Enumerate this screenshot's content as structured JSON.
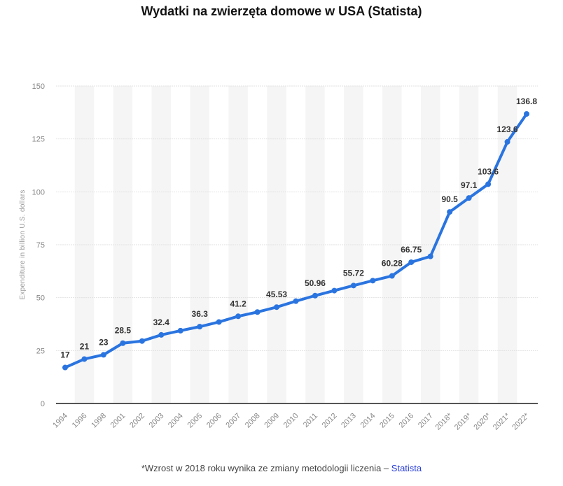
{
  "title": "Wydatki na zwierzęta domowe w USA (Statista)",
  "footnote": {
    "text": "*Wzrost w 2018 roku wynika ze zmiany metodologii liczenia – ",
    "source_link": "Statista"
  },
  "chart_data": {
    "type": "line",
    "xlabel": "",
    "ylabel": "Expenditure in billion U.S. dollars",
    "ylim": [
      0,
      150
    ],
    "yticks": [
      0,
      25,
      50,
      75,
      100,
      125,
      150
    ],
    "grid": true,
    "line_color": "#2a74e0",
    "categories": [
      "1994",
      "1996",
      "1998",
      "2001",
      "2002",
      "2003",
      "2004",
      "2005",
      "2006",
      "2007",
      "2008",
      "2009",
      "2010",
      "2011",
      "2012",
      "2013",
      "2014",
      "2015",
      "2016",
      "2017",
      "2018*",
      "2019*",
      "2020*",
      "2021*",
      "2022*"
    ],
    "series": [
      {
        "values": [
          17,
          21,
          23,
          28.5,
          29.5,
          32.4,
          34.4,
          36.3,
          38.5,
          41.2,
          43.2,
          45.53,
          48.35,
          50.96,
          53.33,
          55.72,
          58.04,
          60.28,
          66.75,
          69.51,
          90.5,
          97.1,
          103.6,
          123.6,
          136.8
        ],
        "labels": [
          "17",
          "21",
          "23",
          "28.5",
          null,
          "32.4",
          null,
          "36.3",
          null,
          "41.2",
          null,
          "45.53",
          null,
          "50.96",
          null,
          "55.72",
          null,
          "60.28",
          "66.75",
          null,
          "90.5",
          "97.1",
          "103.6",
          "123.6",
          "136.8"
        ]
      }
    ]
  }
}
